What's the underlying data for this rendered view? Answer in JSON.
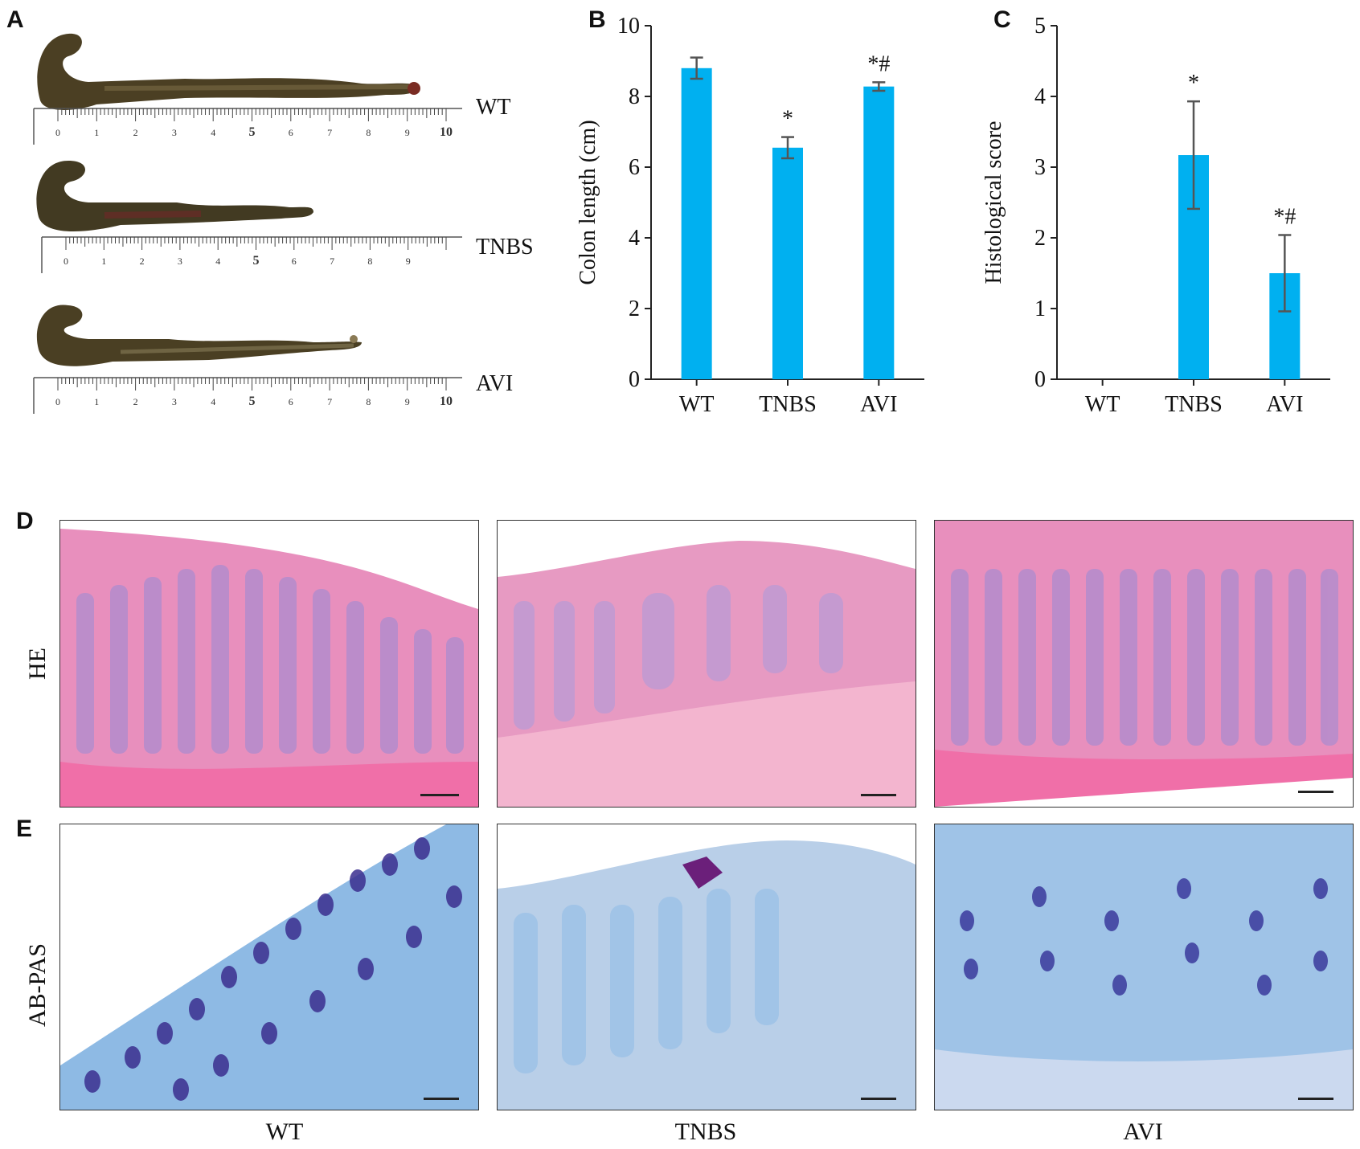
{
  "panels": {
    "A": "A",
    "B": "B",
    "C": "C",
    "D": "D",
    "E": "E"
  },
  "panel_a": {
    "rows": [
      {
        "label": "WT",
        "ruler_ticks": [
          "0",
          "1",
          "2",
          "3",
          "4",
          "5",
          "6",
          "7",
          "8",
          "9",
          "10"
        ]
      },
      {
        "label": "TNBS",
        "ruler_ticks": [
          "0",
          "1",
          "2",
          "3",
          "4",
          "5",
          "6",
          "7",
          "8",
          "9"
        ]
      },
      {
        "label": "AVI",
        "ruler_ticks": [
          "0",
          "1",
          "2",
          "3",
          "4",
          "5",
          "6",
          "7",
          "8",
          "9",
          "10"
        ]
      }
    ]
  },
  "chart_data": [
    {
      "type": "bar",
      "panel": "B",
      "categories": [
        "WT",
        "TNBS",
        "AVI"
      ],
      "values": [
        8.8,
        6.55,
        8.28
      ],
      "errors": [
        0.3,
        0.3,
        0.12
      ],
      "annotations": [
        "",
        "*",
        "*#"
      ],
      "ylabel": "Colon length (cm)",
      "ylim": [
        0,
        10
      ],
      "yticks": [
        "0",
        "2",
        "4",
        "6",
        "8",
        "10"
      ],
      "ytick_values": [
        0,
        2,
        4,
        6,
        8,
        10
      ],
      "bar_color": "#00b0f0",
      "grid": false
    },
    {
      "type": "bar",
      "panel": "C",
      "categories": [
        "WT",
        "TNBS",
        "AVI"
      ],
      "values": [
        0,
        3.17,
        1.5
      ],
      "errors": [
        0,
        0.76,
        0.54
      ],
      "annotations": [
        "",
        "*",
        "*#"
      ],
      "ylabel": "Histological score",
      "ylim": [
        0,
        5
      ],
      "yticks": [
        "0",
        "1",
        "2",
        "3",
        "4",
        "5"
      ],
      "ytick_values": [
        0,
        1,
        2,
        3,
        4,
        5
      ],
      "bar_color": "#00b0f0",
      "grid": false
    }
  ],
  "histology": {
    "rows": [
      {
        "label": "HE"
      },
      {
        "label": "AB-PAS"
      }
    ],
    "columns": [
      "WT",
      "TNBS",
      "AVI"
    ]
  },
  "colors": {
    "he_stain": "#e98cb8",
    "abpas_stain": "#8fb7e3",
    "bar": "#00b0f0"
  }
}
